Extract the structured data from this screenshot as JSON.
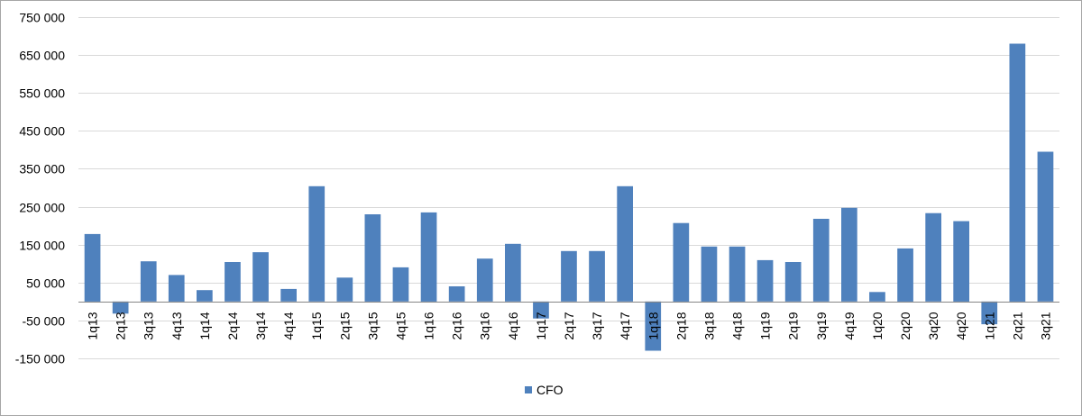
{
  "chart_data": {
    "type": "bar",
    "categories": [
      "1q13",
      "2q13",
      "3q13",
      "4q13",
      "1q14",
      "2q14",
      "3q14",
      "4q14",
      "1q15",
      "2q15",
      "3q15",
      "4q15",
      "1q16",
      "2q16",
      "3q16",
      "4q16",
      "1q17",
      "2q17",
      "3q17",
      "4q17",
      "1q18",
      "2q18",
      "3q18",
      "4q18",
      "1q19",
      "2q19",
      "3q19",
      "4q19",
      "1q20",
      "2q20",
      "3q20",
      "4q20",
      "1q21",
      "2q21",
      "3q21"
    ],
    "series": [
      {
        "name": "CFO",
        "color": "#4f81bd",
        "values": [
          178000,
          -32000,
          106000,
          70000,
          30000,
          104000,
          130000,
          33000,
          304000,
          63000,
          230000,
          90000,
          235000,
          40000,
          113000,
          152000,
          -45000,
          133000,
          133000,
          304000,
          -130000,
          207000,
          145000,
          145000,
          109000,
          104000,
          218000,
          247000,
          25000,
          140000,
          233000,
          212000,
          -60000,
          680000,
          395000
        ]
      }
    ],
    "yticks": [
      -150000,
      -50000,
      50000,
      150000,
      250000,
      350000,
      450000,
      550000,
      650000,
      750000
    ],
    "ytick_labels": [
      "-150 000",
      "-50 000",
      "50 000",
      "150 000",
      "250 000",
      "350 000",
      "450 000",
      "550 000",
      "650 000",
      "750 000"
    ],
    "ylim": [
      -150000,
      750000
    ],
    "grid": true,
    "legend_position": "bottom"
  }
}
